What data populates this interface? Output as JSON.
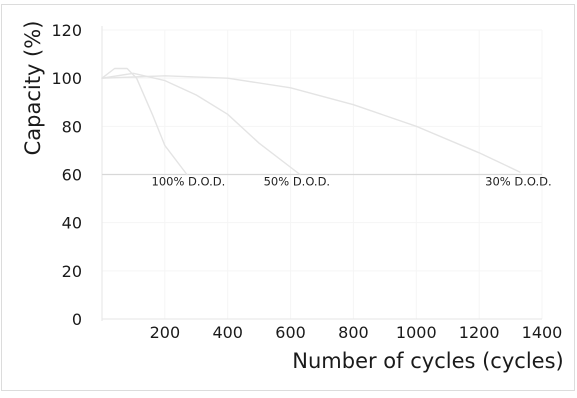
{
  "chart_data": {
    "type": "line",
    "title": "",
    "xlabel": "Number of cycles (cycles)",
    "ylabel": "Capacity (%)",
    "xlim": [
      0,
      1400
    ],
    "ylim": [
      0,
      120
    ],
    "x_ticks": [
      200,
      400,
      600,
      800,
      1000,
      1200,
      1400
    ],
    "y_ticks": [
      0,
      20,
      40,
      60,
      80,
      100,
      120
    ],
    "grid": true,
    "reference_line": {
      "y": 60
    },
    "line_color": "#e4e4e4",
    "series": [
      {
        "name": "100% D.O.D.",
        "x": [
          0,
          40,
          80,
          110,
          160,
          200,
          270
        ],
        "y": [
          100,
          104,
          104,
          100,
          85,
          72,
          60
        ]
      },
      {
        "name": "50% D.O.D.",
        "x": [
          0,
          100,
          200,
          300,
          400,
          500,
          630
        ],
        "y": [
          100,
          102,
          99,
          93,
          85,
          73,
          60
        ]
      },
      {
        "name": "30% D.O.D.",
        "x": [
          0,
          200,
          400,
          600,
          800,
          1000,
          1200,
          1330
        ],
        "y": [
          100,
          101,
          100,
          96,
          89,
          80,
          69,
          61
        ]
      }
    ],
    "annotations": [
      {
        "text": "100% D.O.D.",
        "x": 275,
        "y": 57
      },
      {
        "text": "50% D.O.D.",
        "x": 620,
        "y": 57
      },
      {
        "text": "30% D.O.D.",
        "x": 1325,
        "y": 57
      }
    ]
  }
}
